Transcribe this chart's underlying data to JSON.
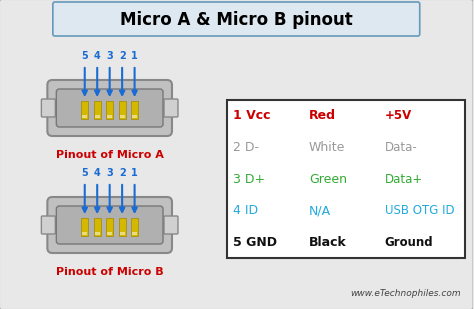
{
  "title": "Micro A & Micro B pinout",
  "bg_color": "#e8e8e8",
  "outer_border_color": "#aaaaaa",
  "title_box_color": "#dde8f0",
  "title_box_border": "#6699bb",
  "title_color": "#000000",
  "connector_fill": "#c0c0c0",
  "connector_edge": "#888888",
  "connector_inner_fill": "#b0b0b0",
  "connector_inner_edge": "#777777",
  "pin_fill": "#d4b800",
  "pin_edge": "#a08800",
  "pin_bottom_fill": "#f0e060",
  "arrow_color": "#1a6cd4",
  "num_color": "#1a6cd4",
  "label_a": "Pinout of Micro A",
  "label_b": "Pinout of Micro B",
  "label_color": "#cc0000",
  "table_rows": [
    {
      "pin": "1 Vcc",
      "color_name": "Red",
      "desc": "+5V",
      "pin_color": "#cc0000",
      "color_color": "#cc0000",
      "desc_color": "#cc0000",
      "bold": true
    },
    {
      "pin": "2 D-",
      "color_name": "White",
      "desc": "Data-",
      "pin_color": "#999999",
      "color_color": "#999999",
      "desc_color": "#999999",
      "bold": false
    },
    {
      "pin": "3 D+",
      "color_name": "Green",
      "desc": "Data+",
      "pin_color": "#33aa33",
      "color_color": "#33aa33",
      "desc_color": "#33aa33",
      "bold": false
    },
    {
      "pin": "4 ID",
      "color_name": "N/A",
      "desc": "USB OTG ID",
      "pin_color": "#22aadd",
      "color_color": "#22aadd",
      "desc_color": "#22aadd",
      "bold": false
    },
    {
      "pin": "5 GND",
      "color_name": "Black",
      "desc": "Ground",
      "pin_color": "#111111",
      "color_color": "#111111",
      "desc_color": "#111111",
      "bold": true
    }
  ],
  "table_border": "#333333",
  "website": "www.eTechnophiles.com"
}
